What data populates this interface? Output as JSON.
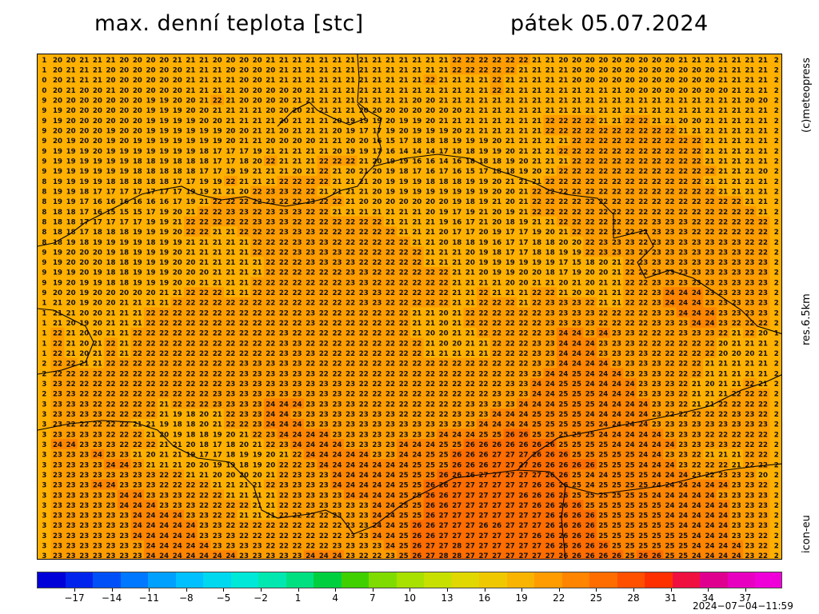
{
  "header": {
    "title_left": "max. denní teplota [stc]",
    "title_right": "pátek 05.07.2024"
  },
  "side_labels": {
    "credit": "(c)meteopress",
    "resolution": "res.6.5km",
    "model": "icon-eu"
  },
  "colorbar": {
    "tick_labels": [
      "−17",
      "−14",
      "−11",
      "−8",
      "−5",
      "−2",
      "1",
      "4",
      "7",
      "10",
      "13",
      "16",
      "19",
      "22",
      "25",
      "28",
      "31",
      "34",
      "37"
    ],
    "colors": [
      "#0000d8",
      "#0024ec",
      "#0050f8",
      "#0078ff",
      "#00a0ff",
      "#00c0ff",
      "#00d8f0",
      "#00e8d8",
      "#00e8b0",
      "#00e080",
      "#00d040",
      "#40d000",
      "#80dc00",
      "#a8e000",
      "#c8e000",
      "#e0d800",
      "#f0c800",
      "#f8b400",
      "#ff9c00",
      "#ff8400",
      "#ff6c00",
      "#ff5000",
      "#ff3000",
      "#f01040",
      "#e00090",
      "#e800c0",
      "#f000d8"
    ]
  },
  "timestamp": "2024−07−04−11:59",
  "map_colors": {
    "low": "#ffb000",
    "mid": "#ff9c00",
    "high": "#ff8400",
    "hot": "#ff6c00",
    "border": "#000000"
  },
  "temperature_grid": [
    "1 20 20 21 21 21 20 20 20 20 21 21 21 20 20 20 20 21 21 21 21 21 21 21 21 21 21 21 21 21 21 22 22 22 22 22 22 21 21 20 20 20 20 20 20 20 20 20 21 21 21 21 21 21 21 2",
    "1 20 21 21 21 20 20 20 20 20 20 21 21 21 20 20 20 20 21 21 21 21 21 21 21 21 21 21 21 21 21 22 22 22 22 22 21 21 21 21 20 20 20 20 20 20 20 20 20 20 20 21 21 21 21 2",
    "0 20 21 21 21 20 20 20 20 20 20 21 21 21 21 20 20 21 21 21 21 21 21 21 21 21 21 21 21 22 21 21 21 21 22 21 21 21 21 21 20 20 20 20 20 20 20 20 20 20 20 21 21 21 21 2",
    "0 20 21 20 20 21 20 20 20 20 20 21 21 21 21 20 20 20 20 20 21 21 21 21 21 21 21 21 21 21 21 21 21 21 22 21 21 21 21 21 21 21 21 21 20 20 20 20 20 20 20 20 21 21 21 2",
    "9 20 20 20 20 20 20 20 19 19 20 20 21 22 21 20 20 20 20 21 21 21 21 21 21 21 21 21 20 20 21 21 21 21 21 21 21 21 21 21 21 21 21 21 21 21 21 21 21 21 21 21 21 20 20 2",
    "9 19 20 20 20 20 20 20 19 19 19 20 20 21 21 21 21 20 20 20 21 21 21 21 20 20 20 20 20 20 20 20 21 21 21 21 21 21 21 21 21 21 21 21 21 21 21 21 21 21 21 21 21 21 21 2",
    "9 19 20 20 20 20 20 20 19 19 19 19 20 20 21 21 21 21 20 21 21 21 20 19 19 19 20 19 19 20 21 21 21 21 21 21 21 21 22 22 22 22 21 21 22 22 21 21 20 20 21 21 21 21 21 2",
    "9 20 20 20 20 19 20 20 19 19 19 19 19 19 20 20 21 21 20 21 21 21 20 19 17 17 19 20 19 19 19 20 21 21 21 21 21 21 22 22 22 22 22 22 22 22 22 22 21 21 21 21 21 21 21 2",
    "9 20 19 20 20 19 20 19 19 19 19 19 19 19 20 21 21 20 20 20 20 21 21 20 20 16 15 17 18 18 18 19 19 19 20 21 21 21 21 21 22 22 22 22 22 22 22 22 22 22 21 21 21 21 21 2",
    "9 19 19 19 20 19 19 19 19 19 19 19 18 17 17 17 19 21 21 21 21 21 20 19 19 17 16 14 14 14 17 18 18 19 19 20 21 21 21 22 22 22 22 22 22 22 22 22 22 22 21 21 21 21 21 2",
    "9 19 19 19 19 19 19 18 18 19 18 18 18 17 17 18 20 22 21 21 21 22 22 22 21 20 19 19 16 16 14 16 18 18 18 19 20 21 21 21 22 22 22 22 22 22 22 22 22 22 21 21 21 21 21 2",
    "9 19 19 19 19 19 19 18 18 18 18 18 17 17 19 19 21 21 21 20 21 22 21 20 21 20 19 18 17 16 17 16 15 17 18 18 19 20 21 22 22 22 22 22 22 22 22 22 22 22 22 21 21 21 20 2",
    "8 19 19 19 19 18 18 18 18 18 17 17 19 19 22 21 21 21 22 22 22 22 21 21 21 20 19 19 19 18 18 18 19 19 20 21 21 21 22 22 22 22 22 22 22 22 22 22 22 22 21 21 21 21 21 2",
    "8 19 19 18 17 17 17 17 17 17 17 19 19 21 21 20 22 23 23 22 22 21 21 21 21 20 19 19 19 19 19 19 19 19 20 20 21 22 22 22 22 22 22 22 22 22 22 22 22 22 22 21 21 21 21 2",
    "8 19 19 17 16 16 16 16 16 16 17 19 21 22 22 22 22 23 22 22 23 22 22 21 20 20 20 20 20 20 20 19 18 19 21 20 21 22 22 22 22 22 22 22 22 22 22 22 22 22 22 22 22 21 21 2",
    "8 18 18 17 16 15 15 15 17 19 20 21 22 22 23 23 22 23 23 23 22 22 21 21 21 21 21 21 21 20 19 17 19 21 20 19 21 22 22 22 22 22 22 22 22 22 22 22 22 22 22 22 22 22 21 2",
    "8 18 18 17 17 17 17 17 19 19 21 22 22 22 22 22 23 23 23 22 22 22 22 22 22 22 21 21 21 21 19 16 17 21 20 18 19 21 21 22 22 22 22 22 22 22 23 23 23 22 22 22 22 22 22 2",
    "8 18 18 17 18 18 18 19 19 19 20 22 22 21 21 22 22 22 23 23 23 22 22 22 22 22 22 21 21 21 20 17 17 20 19 17 17 19 20 21 22 22 22 22 22 22 23 23 23 22 22 22 22 22 22 2",
    "8 18 19 18 19 19 19 19 18 19 19 21 21 21 21 21 22 22 22 23 23 23 22 22 22 22 22 22 21 21 20 18 18 19 16 17 17 18 18 20 20 22 23 23 23 22 23 23 23 23 23 23 23 22 22 2",
    "9 19 20 20 20 19 18 19 19 19 20 21 21 21 21 21 22 22 22 23 23 23 23 22 22 22 22 22 22 21 21 21 20 19 18 17 17 18 18 19 19 22 23 23 23 23 23 23 23 23 23 23 23 22 22 2",
    "9 19 20 20 20 18 18 19 19 19 20 20 21 21 21 21 21 22 22 22 23 23 23 23 22 22 22 22 22 21 21 21 20 19 19 19 19 19 19 17 15 18 20 21 22 23 23 23 23 23 23 23 23 23 23 2",
    "9 19 19 20 19 18 18 19 19 19 20 20 20 21 21 21 21 22 22 22 22 22 22 23 23 22 22 22 22 22 22 21 21 20 19 19 20 20 18 17 19 20 20 21 22 22 23 23 23 23 23 23 23 23 23 2",
    "9 19 20 19 19 18 18 19 19 19 20 20 21 21 21 21 22 22 22 22 22 22 22 23 23 22 22 22 22 22 22 21 21 21 21 20 20 21 21 20 21 20 21 21 22 22 23 23 23 23 23 23 23 23 23 2",
    "9 20 20 19 20 20 20 20 20 21 21 22 22 22 21 21 22 22 22 22 22 22 22 22 23 23 22 22 22 22 22 21 21 22 21 21 21 22 22 21 20 20 21 21 22 22 23 24 24 24 23 23 23 23 23 2",
    "1 21 20 19 20 20 21 21 21 21 22 22 22 22 22 22 22 22 22 22 22 22 22 22 23 23 22 22 22 22 22 21 21 22 22 22 21 22 23 23 23 22 21 21 22 22 23 24 24 24 23 23 23 23 23 2",
    "1 21 21 20 20 21 21 21 22 22 22 22 22 22 22 22 22 22 22 22 23 22 22 22 22 22 22 22 21 21 20 21 22 22 22 22 22 22 23 23 23 23 22 22 22 22 23 23 24 24 24 23 23 23 23 2",
    "1 21 20 19 20 21 21 21 22 22 22 22 22 22 22 22 22 22 22 22 23 22 22 22 22 22 22 22 21 21 20 21 22 22 22 22 22 22 23 23 23 23 22 22 22 22 23 23 23 24 24 23 22 22 22 2",
    "1 22 21 20 20 21 21 22 22 22 22 22 22 22 22 22 22 22 23 22 22 22 22 22 22 22 22 22 21 20 20 21 21 22 22 22 22 22 23 24 24 23 24 23 23 22 22 22 23 23 23 22 21 22 20 1",
    "1 22 21 20 21 22 21 22 22 22 22 22 22 22 22 22 22 22 23 23 22 22 22 22 22 22 22 22 22 21 20 20 21 21 22 22 22 23 23 24 24 24 23 23 23 22 22 22 22 22 22 20 21 21 21 2",
    "1 22 21 20 21 22 21 22 22 22 22 22 22 22 22 22 22 22 23 23 23 22 22 22 22 22 22 22 22 21 21 21 21 21 22 22 22 23 23 24 24 24 23 23 23 23 22 22 22 22 22 20 20 20 21 2",
    "2 22 22 21 21 22 22 22 22 22 22 22 22 22 22 23 23 23 23 23 22 22 22 22 22 22 22 22 22 22 22 22 22 22 22 22 22 23 23 24 24 24 24 23 23 23 23 22 22 22 21 21 21 21 21 2",
    "2 22 22 22 22 22 22 22 22 22 22 22 22 22 22 23 23 23 23 23 23 22 22 22 22 22 22 22 22 22 22 22 22 22 22 22 23 23 24 24 25 24 24 24 23 23 23 22 22 22 21 21 21 21 21 2",
    "3 23 22 22 22 22 22 22 22 22 22 22 22 22 23 23 23 23 23 23 23 23 23 23 22 22 22 22 22 22 22 22 22 22 22 23 23 24 24 25 25 24 24 24 24 23 23 23 22 21 20 21 21 22 21 2",
    "2 23 23 22 22 22 22 22 22 22 22 22 22 23 23 23 23 23 23 23 23 23 23 22 22 22 22 22 22 22 22 22 22 22 23 23 23 24 24 25 25 25 24 24 24 23 23 23 22 21 21 21 22 22 22 2",
    "3 23 23 23 22 22 22 22 22 21 22 22 22 23 23 23 23 24 24 24 23 23 23 23 22 22 22 22 22 22 22 22 23 23 23 23 24 24 24 25 25 25 24 24 24 24 23 23 22 21 21 22 22 22 22 2",
    "3 23 23 23 23 22 22 22 22 21 19 18 20 21 22 23 23 24 24 23 23 23 23 23 23 23 23 22 22 22 22 23 23 23 24 24 24 25 25 25 25 24 24 24 24 24 23 22 22 22 22 22 23 23 22 2",
    "3 23 22 22 22 22 22 21 21 19 18 18 20 21 22 22 23 24 24 24 23 23 23 23 23 23 23 23 23 23 23 23 23 24 24 24 24 25 25 25 25 25 24 24 24 24 23 23 23 23 23 23 23 23 23 2",
    "3 23 23 23 23 22 22 22 21 20 19 18 18 19 20 21 22 23 24 24 24 24 23 23 23 23 23 23 23 23 24 24 24 25 25 26 26 25 25 25 25 25 24 24 24 24 24 23 23 23 22 22 22 22 22 2",
    "3 24 24 23 23 23 22 22 22 21 21 20 18 17 18 20 21 22 23 24 24 24 24 23 23 23 23 24 24 24 25 25 26 26 26 26 26 26 26 25 25 25 25 24 24 24 24 24 23 23 23 23 22 22 22 2",
    "3 23 23 23 24 23 23 21 20 21 21 19 17 17 18 19 19 20 21 22 24 24 24 24 24 23 23 24 24 25 25 26 26 26 27 27 27 26 26 26 25 25 25 25 25 24 24 23 23 22 21 21 21 22 22 2",
    "3 23 23 23 23 24 24 23 21 21 21 20 20 19 19 18 19 20 22 22 23 24 24 24 24 24 24 24 25 25 25 26 26 26 27 27 27 26 26 26 26 26 25 25 25 24 24 24 23 22 22 22 21 22 22 2",
    "3 23 23 23 23 23 23 23 23 22 22 21 21 20 20 20 20 21 22 23 23 23 24 24 24 24 24 25 25 25 26 26 26 27 27 27 27 27 26 26 25 24 24 25 25 25 24 24 24 23 22 23 23 23 20 2",
    "3 23 23 23 24 24 23 23 23 22 22 22 22 21 21 21 21 22 23 23 23 23 24 24 24 24 24 25 25 26 26 27 27 27 27 27 27 26 26 26 25 24 25 25 25 25 24 24 24 24 24 24 23 23 22 2",
    "3 23 23 23 23 23 24 24 23 23 23 22 22 22 21 21 21 21 22 23 23 23 23 24 24 24 24 25 25 26 26 27 27 27 27 27 26 26 26 26 25 25 25 25 25 25 24 24 24 24 24 23 23 23 23 2",
    "3 23 23 23 23 23 24 24 24 23 23 23 22 22 22 22 21 21 22 22 23 23 23 23 23 24 24 25 25 26 26 27 27 27 27 27 27 26 26 26 26 25 25 25 25 25 25 24 24 24 24 24 23 23 23 2",
    "3 23 23 23 23 23 23 24 24 24 24 23 23 22 22 21 21 21 22 22 22 22 23 23 23 24 24 25 25 26 27 27 27 27 27 27 27 27 26 26 26 26 25 25 25 25 25 24 24 24 24 24 23 23 23 2",
    "3 23 23 23 23 23 23 24 24 24 24 24 23 23 22 22 22 22 22 22 22 22 22 23 23 24 24 25 26 26 27 27 27 26 26 27 27 27 26 26 26 26 25 25 25 25 25 25 24 24 24 24 23 23 23 2",
    "3 23 23 23 23 23 23 24 24 24 24 24 23 23 23 22 22 22 22 22 22 22 22 23 23 24 24 25 26 26 27 27 27 27 27 27 27 26 26 26 26 26 25 25 25 25 25 25 25 24 24 24 23 23 22 2",
    "3 23 23 23 23 23 23 23 24 24 24 24 24 23 23 23 23 22 22 22 22 22 23 23 23 23 24 25 26 27 27 28 27 27 27 27 27 27 26 26 26 26 26 25 25 25 25 25 25 24 24 24 24 23 22 2",
    "3 23 23 23 23 23 23 23 24 24 24 24 24 24 24 23 23 23 23 23 24 24 24 23 22 22 23 25 26 27 28 28 27 27 27 27 27 27 27 26 26 26 26 26 25 26 26 25 25 24 24 24 24 23 22 2"
  ]
}
